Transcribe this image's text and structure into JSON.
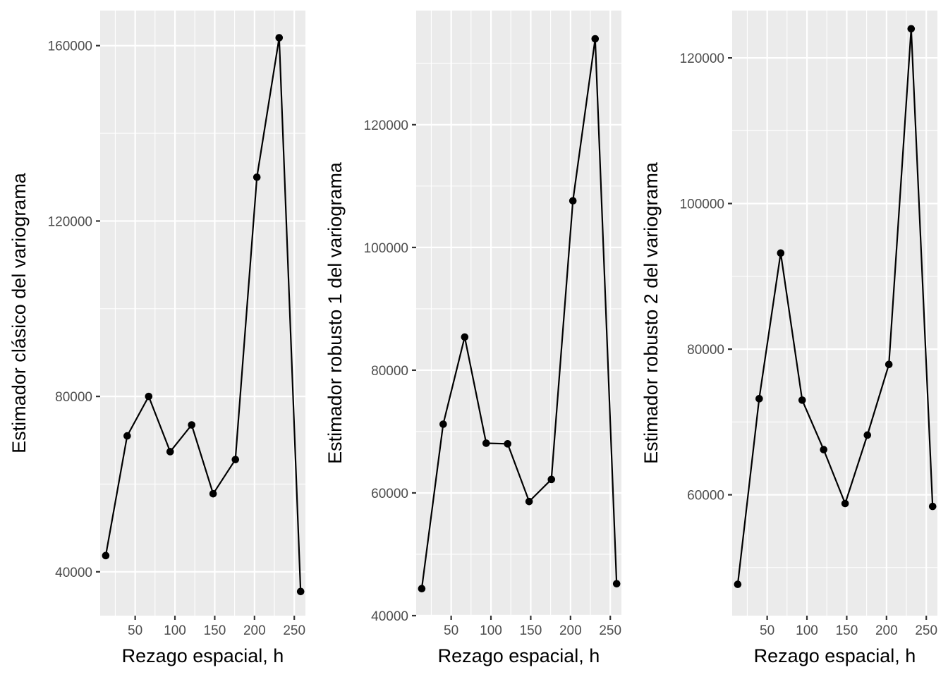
{
  "chart_data": [
    {
      "type": "line",
      "xlabel": "Rezago espacial, h",
      "ylabel": "Estimador clásico del variograma",
      "x": [
        13,
        40,
        67,
        94,
        121,
        148,
        176,
        203,
        231,
        258
      ],
      "values": [
        43700,
        71000,
        80000,
        67400,
        73500,
        57800,
        65600,
        130000,
        161800,
        35500
      ],
      "xlim": [
        6,
        264
      ],
      "ylim": [
        30000,
        168000
      ],
      "xticks": [
        50,
        100,
        150,
        200,
        250
      ],
      "xtick_labels": [
        "50",
        "100",
        "150",
        "200",
        "250"
      ],
      "yticks": [
        40000,
        80000,
        120000,
        160000
      ],
      "ytick_labels": [
        "40000",
        "80000",
        "120000",
        "160000"
      ],
      "grid": true,
      "color": "#000000"
    },
    {
      "type": "line",
      "xlabel": "Rezago espacial, h",
      "ylabel": "Estimador robusto 1 del variograma",
      "x": [
        13,
        40,
        67,
        94,
        121,
        148,
        176,
        203,
        231,
        258
      ],
      "values": [
        44400,
        71200,
        85400,
        68100,
        68000,
        58600,
        62200,
        107600,
        134000,
        45200
      ],
      "xlim": [
        6,
        264
      ],
      "ylim": [
        40000,
        138600
      ],
      "xticks": [
        50,
        100,
        150,
        200,
        250
      ],
      "xtick_labels": [
        "50",
        "100",
        "150",
        "200",
        "250"
      ],
      "yticks": [
        40000,
        60000,
        80000,
        100000,
        120000
      ],
      "ytick_labels": [
        "40000",
        "60000",
        "80000",
        "100000",
        "120000"
      ],
      "grid": true,
      "color": "#000000"
    },
    {
      "type": "line",
      "xlabel": "Rezago espacial, h",
      "ylabel": "Estimador robusto 2 del variograma",
      "x": [
        13,
        40,
        67,
        94,
        121,
        148,
        176,
        203,
        231,
        258
      ],
      "values": [
        47700,
        73200,
        93200,
        73000,
        66200,
        58800,
        68200,
        77900,
        124000,
        58400
      ],
      "xlim": [
        6,
        264
      ],
      "ylim": [
        43400,
        126500
      ],
      "xticks": [
        50,
        100,
        150,
        200,
        250
      ],
      "xtick_labels": [
        "50",
        "100",
        "150",
        "200",
        "250"
      ],
      "yticks": [
        60000,
        80000,
        100000,
        120000
      ],
      "ytick_labels": [
        "60000",
        "80000",
        "100000",
        "120000"
      ],
      "grid": true,
      "color": "#000000"
    }
  ]
}
